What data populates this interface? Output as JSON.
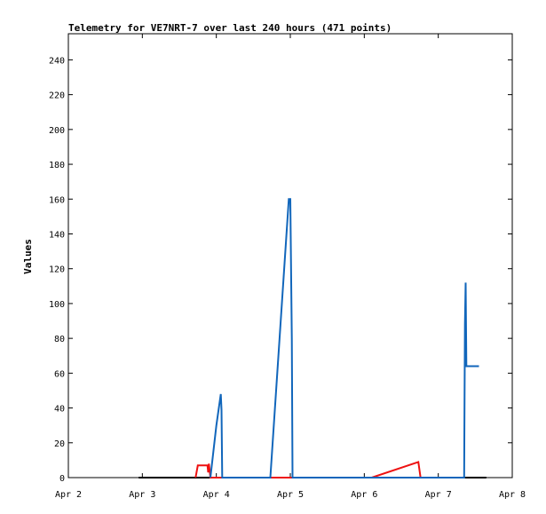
{
  "chart_data": {
    "type": "line",
    "title": "Telemetry for VE7NRT-7 over last 240 hours (471 points)",
    "xlabel": "",
    "ylabel": "Values",
    "xlim": [
      0,
      6
    ],
    "ylim": [
      0,
      255
    ],
    "x_ticks": [
      {
        "value": 0,
        "label": "Apr 2"
      },
      {
        "value": 1,
        "label": "Apr 3"
      },
      {
        "value": 2,
        "label": "Apr 4"
      },
      {
        "value": 3,
        "label": "Apr 5"
      },
      {
        "value": 4,
        "label": "Apr 6"
      },
      {
        "value": 5,
        "label": "Apr 7"
      },
      {
        "value": 6,
        "label": "Apr 8"
      }
    ],
    "y_ticks": [
      0,
      20,
      40,
      60,
      80,
      100,
      120,
      140,
      160,
      180,
      200,
      220,
      240
    ],
    "grid": false,
    "legend": "none",
    "series": [
      {
        "color": "#000000",
        "points": [
          [
            0.95,
            0
          ],
          [
            5.65,
            0
          ]
        ]
      },
      {
        "color": "#ee1111",
        "points": [
          [
            1.72,
            0
          ],
          [
            1.75,
            7
          ],
          [
            1.88,
            7
          ],
          [
            1.89,
            3
          ],
          [
            1.9,
            8
          ],
          [
            1.92,
            0
          ],
          [
            4.1,
            0
          ],
          [
            4.73,
            9
          ],
          [
            4.76,
            0
          ]
        ]
      },
      {
        "color": "#1166bb",
        "points": [
          [
            1.92,
            0
          ],
          [
            2.0,
            30
          ],
          [
            2.06,
            48
          ],
          [
            2.07,
            39
          ],
          [
            2.08,
            0
          ],
          [
            2.73,
            0
          ],
          [
            2.98,
            160
          ],
          [
            3.0,
            160
          ],
          [
            3.02,
            80
          ],
          [
            3.03,
            0
          ],
          [
            5.35,
            0
          ],
          [
            5.36,
            88
          ],
          [
            5.37,
            112
          ],
          [
            5.38,
            64
          ],
          [
            5.55,
            64
          ]
        ]
      }
    ]
  }
}
